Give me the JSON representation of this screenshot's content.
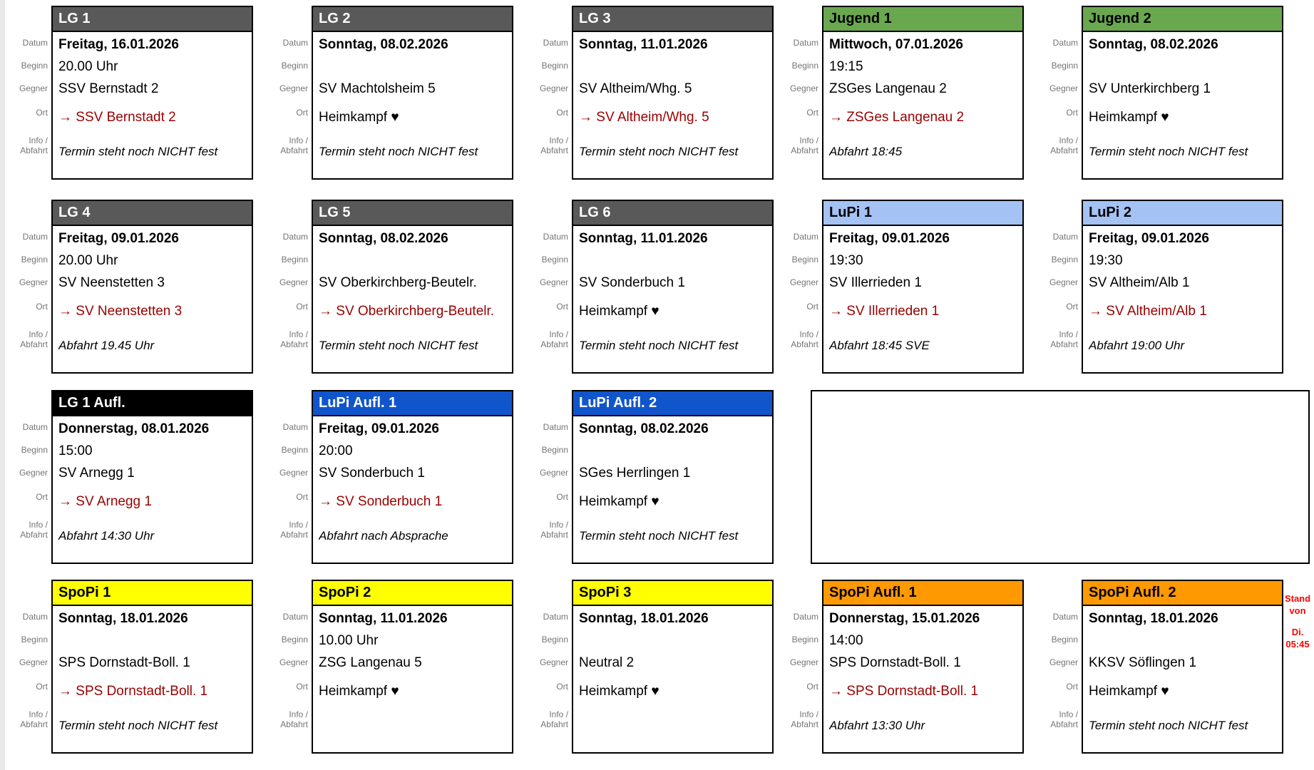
{
  "row_labels": {
    "datum": "Datum",
    "beginn": "Beginn",
    "gegner": "Gegner",
    "ort": "Ort",
    "info_line1": "Info /",
    "info_line2": "Abfahrt"
  },
  "theme": {
    "lg": {
      "bg": "#595959",
      "fg": "#ffffff"
    },
    "jugend": {
      "bg": "#6aa84f",
      "fg": "#000000"
    },
    "lupi": {
      "bg": "#a4c2f4",
      "fg": "#000000"
    },
    "lg_aufl": {
      "bg": "#000000",
      "fg": "#ffffff"
    },
    "lupi_aufl": {
      "bg": "#1155cc",
      "fg": "#ffffff"
    },
    "spopi": {
      "bg": "#ffff00",
      "fg": "#000000"
    },
    "spopi_aufl": {
      "bg": "#ff9900",
      "fg": "#000000"
    }
  },
  "accents": {
    "away_red": "#990000",
    "label_gray": "#757575",
    "arrow": "→",
    "heart": "♥"
  },
  "cards": [
    {
      "team": "LG 1",
      "type": "lg",
      "row": 1,
      "col": 1,
      "datum": "Freitag, 16.01.2026",
      "beginn": "20.00 Uhr",
      "gegner": "SSV Bernstadt 2",
      "ort": {
        "away": true,
        "text": "SSV Bernstadt 2"
      },
      "info": "Termin steht noch NICHT fest"
    },
    {
      "team": "LG 2",
      "type": "lg",
      "row": 1,
      "col": 2,
      "datum": "Sonntag, 08.02.2026",
      "beginn": "",
      "gegner": "SV Machtolsheim 5",
      "ort": {
        "away": false,
        "text": "Heimkampf ♥"
      },
      "info": "Termin steht noch NICHT fest"
    },
    {
      "team": "LG 3",
      "type": "lg",
      "row": 1,
      "col": 3,
      "datum": "Sonntag, 11.01.2026",
      "beginn": "",
      "gegner": "SV Altheim/Whg. 5",
      "ort": {
        "away": true,
        "text": "SV Altheim/Whg. 5"
      },
      "info": "Termin steht noch NICHT fest"
    },
    {
      "team": "Jugend 1",
      "type": "jugend",
      "row": 1,
      "col": 4,
      "datum": "Mittwoch, 07.01.2026",
      "beginn": "19:15",
      "gegner": "ZSGes Langenau 2",
      "ort": {
        "away": true,
        "text": "ZSGes Langenau 2"
      },
      "info": "Abfahrt 18:45"
    },
    {
      "team": "Jugend 2",
      "type": "jugend",
      "row": 1,
      "col": 5,
      "datum": "Sonntag, 08.02.2026",
      "beginn": "",
      "gegner": "SV Unterkirchberg 1",
      "ort": {
        "away": false,
        "text": "Heimkampf ♥"
      },
      "info": "Termin steht noch NICHT fest"
    },
    {
      "team": "LG 4",
      "type": "lg",
      "row": 2,
      "col": 1,
      "datum": "Freitag, 09.01.2026",
      "beginn": "20.00 Uhr",
      "gegner": "SV Neenstetten 3",
      "ort": {
        "away": true,
        "text": "SV Neenstetten 3"
      },
      "info": "Abfahrt 19.45 Uhr"
    },
    {
      "team": "LG 5",
      "type": "lg",
      "row": 2,
      "col": 2,
      "datum": "Sonntag, 08.02.2026",
      "beginn": "",
      "gegner": "SV Oberkirchberg-Beutelr.",
      "ort": {
        "away": true,
        "text": "SV Oberkirchberg-Beutelr."
      },
      "info": "Termin steht noch NICHT fest"
    },
    {
      "team": "LG 6",
      "type": "lg",
      "row": 2,
      "col": 3,
      "datum": "Sonntag, 11.01.2026",
      "beginn": "",
      "gegner": "SV Sonderbuch 1",
      "ort": {
        "away": false,
        "text": "Heimkampf ♥"
      },
      "info": "Termin steht noch NICHT fest"
    },
    {
      "team": "LuPi 1",
      "type": "lupi",
      "row": 2,
      "col": 4,
      "datum": "Freitag, 09.01.2026",
      "beginn": "19:30",
      "gegner": "SV Illerrieden 1",
      "ort": {
        "away": true,
        "text": "SV Illerrieden 1"
      },
      "info": "Abfahrt 18:45 SVE"
    },
    {
      "team": "LuPi 2",
      "type": "lupi",
      "row": 2,
      "col": 5,
      "datum": "Freitag, 09.01.2026",
      "beginn": "19:30",
      "gegner": "SV Altheim/Alb 1",
      "ort": {
        "away": true,
        "text": "SV Altheim/Alb 1"
      },
      "info": "Abfahrt 19:00 Uhr"
    },
    {
      "team": "LG 1 Aufl.",
      "type": "lg_aufl",
      "row": 3,
      "col": 1,
      "datum": "Donnerstag, 08.01.2026",
      "beginn": "15:00",
      "gegner": "SV Arnegg 1",
      "ort": {
        "away": true,
        "text": "SV Arnegg 1"
      },
      "info": "Abfahrt 14:30 Uhr"
    },
    {
      "team": "LuPi Aufl. 1",
      "type": "lupi_aufl",
      "row": 3,
      "col": 2,
      "datum": "Freitag, 09.01.2026",
      "beginn": "20:00",
      "gegner": "SV Sonderbuch 1",
      "ort": {
        "away": true,
        "text": "SV Sonderbuch 1"
      },
      "info": "Abfahrt nach Absprache"
    },
    {
      "team": "LuPi Aufl. 2",
      "type": "lupi_aufl",
      "row": 3,
      "col": 3,
      "datum": "Sonntag, 08.02.2026",
      "beginn": "",
      "gegner": "SGes Herrlingen 1",
      "ort": {
        "away": false,
        "text": "Heimkampf ♥"
      },
      "info": "Termin steht noch NICHT fest"
    },
    {
      "team": "SpoPi 1",
      "type": "spopi",
      "row": 4,
      "col": 1,
      "datum": "Sonntag, 18.01.2026",
      "beginn": "",
      "gegner": "SPS Dornstadt-Boll. 1",
      "ort": {
        "away": true,
        "text": "SPS Dornstadt-Boll. 1"
      },
      "info": "Termin steht noch NICHT fest"
    },
    {
      "team": "SpoPi 2",
      "type": "spopi",
      "row": 4,
      "col": 2,
      "datum": "Sonntag, 11.01.2026",
      "beginn": "10.00 Uhr",
      "gegner": "ZSG Langenau 5",
      "ort": {
        "away": false,
        "text": "Heimkampf ♥"
      },
      "info": ""
    },
    {
      "team": "SpoPi 3",
      "type": "spopi",
      "row": 4,
      "col": 3,
      "datum": "Sonntag, 18.01.2026",
      "beginn": "",
      "gegner": "Neutral 2",
      "ort": {
        "away": false,
        "text": "Heimkampf ♥"
      },
      "info": ""
    },
    {
      "team": "SpoPi Aufl. 1",
      "type": "spopi_aufl",
      "row": 4,
      "col": 4,
      "datum": "Donnerstag, 15.01.2026",
      "beginn": "14:00",
      "gegner": "SPS Dornstadt-Boll. 1",
      "ort": {
        "away": true,
        "text": "SPS Dornstadt-Boll. 1"
      },
      "info": "Abfahrt 13:30 Uhr"
    },
    {
      "team": "SpoPi Aufl. 2",
      "type": "spopi_aufl",
      "row": 4,
      "col": 5,
      "datum": "Sonntag, 18.01.2026",
      "beginn": "",
      "gegner": "KKSV Söflingen 1",
      "ort": {
        "away": false,
        "text": "Heimkampf ♥"
      },
      "info": "Termin steht noch NICHT fest"
    }
  ],
  "empty_cell": {
    "row": 3,
    "col_start": 4,
    "col_end": 5
  },
  "stand": {
    "color": "#ff0000",
    "line1": "Stand",
    "line2": "von",
    "line3": "Di.",
    "line4": "05:45"
  }
}
